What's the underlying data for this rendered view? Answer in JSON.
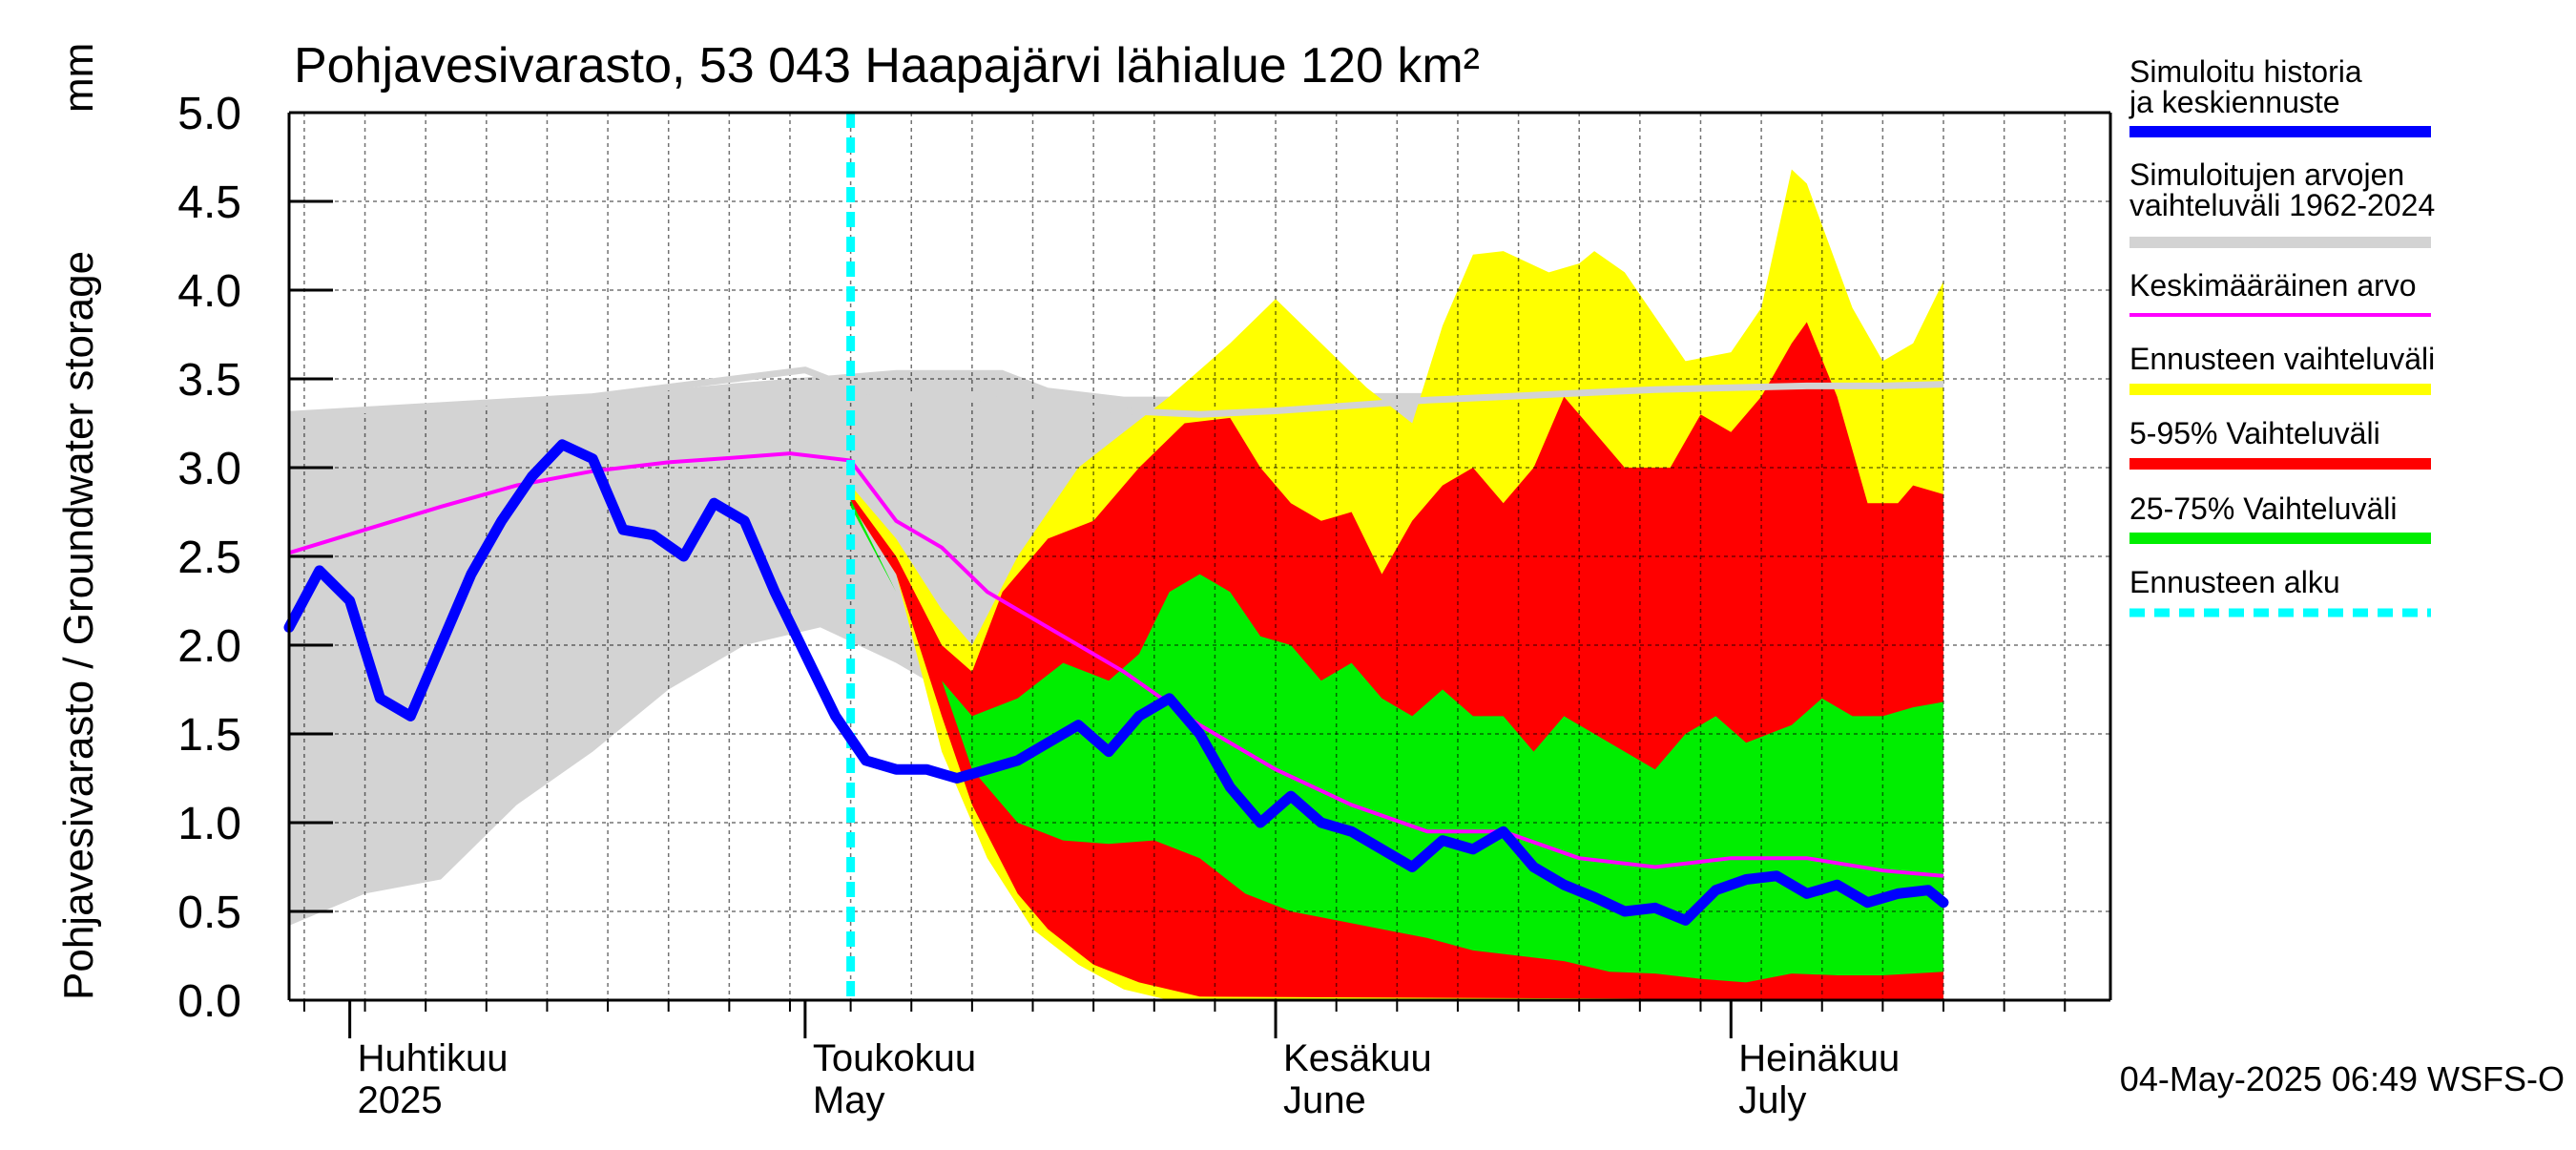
{
  "chart_data": {
    "type": "area",
    "title": "Pohjavesivarasto, 53 043 Haapajärvi lähialue 120 km²",
    "ylabel": "Pohjavesivarasto / Groundwater storage",
    "yunit": "mm",
    "ylim": [
      0.0,
      5.0
    ],
    "yticks": [
      "0.0",
      "0.5",
      "1.0",
      "1.5",
      "2.0",
      "2.5",
      "3.0",
      "3.5",
      "4.0",
      "4.5",
      "5.0"
    ],
    "grid": true,
    "legend_position": "right",
    "x_range": [
      "2025-03-28",
      "2025-07-26"
    ],
    "forecast_start": "2025-05-04",
    "timestamp": "04-May-2025 06:49 WSFS-O",
    "month_labels": [
      {
        "date": "2025-04-01",
        "fi": "Huhtikuu",
        "en": "2025"
      },
      {
        "date": "2025-05-01",
        "fi": "Toukokuu",
        "en": "May"
      },
      {
        "date": "2025-06-01",
        "fi": "Kesäkuu",
        "en": "June"
      },
      {
        "date": "2025-07-01",
        "fi": "Heinäkuu",
        "en": "July"
      }
    ],
    "colors": {
      "history": "#0000ff",
      "hist_range": "#d3d3d3",
      "mean": "#ff00ff",
      "forecast_range": "#ffff00",
      "p5_95": "#ff0000",
      "p25_75": "#00ee00",
      "forecast_start": "#00ffff",
      "mean_min_line": "#d3d3d3"
    },
    "legend": [
      {
        "label": "Simuloitu historia ja keskiennuste",
        "color": "#0000ff",
        "style": "line"
      },
      {
        "label": "Simuloitujen arvojen vaihteluväli 1962-2024",
        "color": "#d3d3d3",
        "style": "line"
      },
      {
        "label": "Keskimääräinen arvo",
        "color": "#ff00ff",
        "style": "thin"
      },
      {
        "label": "Ennusteen vaihteluväli",
        "color": "#ffff00",
        "style": "line"
      },
      {
        "label": "5-95% Vaihteluväli",
        "color": "#ff0000",
        "style": "line"
      },
      {
        "label": "25-75% Vaihteluväli",
        "color": "#00ee00",
        "style": "line"
      },
      {
        "label": "Ennusteen alku",
        "color": "#00ffff",
        "style": "dashed"
      }
    ],
    "series": [
      {
        "name": "Simuloitujen arvojen vaihteluväli 1962-2024",
        "kind": "band",
        "upper": [
          [
            0,
            3.3
          ],
          [
            10,
            3.35
          ],
          [
            20,
            3.4
          ],
          [
            30,
            3.48
          ],
          [
            40,
            3.55
          ],
          [
            47,
            3.55
          ],
          [
            50,
            3.45
          ],
          [
            55,
            3.4
          ],
          [
            62,
            3.4
          ],
          [
            70,
            3.42
          ],
          [
            75,
            3.42
          ],
          [
            80,
            3.44
          ]
        ],
        "lower": [
          [
            0,
            0.42
          ],
          [
            5,
            0.6
          ],
          [
            10,
            0.68
          ],
          [
            15,
            1.1
          ],
          [
            20,
            1.4
          ],
          [
            25,
            1.75
          ],
          [
            30,
            2.0
          ],
          [
            35,
            2.1
          ],
          [
            40,
            1.9
          ],
          [
            44,
            1.7
          ],
          [
            48,
            1.6
          ],
          [
            52,
            1.5
          ],
          [
            56,
            1.3
          ],
          [
            60,
            1.2
          ],
          [
            66,
            1.1
          ],
          [
            70,
            1.0
          ],
          [
            80,
            0.8
          ]
        ]
      },
      {
        "name": "Ennusteen vaihteluväli",
        "kind": "band",
        "upper": [
          [
            37,
            2.9
          ],
          [
            40,
            2.6
          ],
          [
            43,
            2.2
          ],
          [
            45,
            2.0
          ],
          [
            48,
            2.5
          ],
          [
            52,
            3.0
          ],
          [
            58,
            3.4
          ],
          [
            62,
            3.7
          ],
          [
            65,
            3.95
          ],
          [
            68,
            3.7
          ],
          [
            71,
            3.45
          ],
          [
            74,
            3.25
          ],
          [
            76,
            3.8
          ],
          [
            78,
            4.2
          ],
          [
            80,
            4.22
          ],
          [
            83,
            4.1
          ],
          [
            85,
            4.15
          ],
          [
            86,
            4.22
          ],
          [
            88,
            4.1
          ],
          [
            92,
            3.6
          ],
          [
            95,
            3.65
          ],
          [
            97,
            3.9
          ],
          [
            99,
            4.68
          ],
          [
            100,
            4.6
          ],
          [
            103,
            3.9
          ],
          [
            105,
            3.6
          ],
          [
            107,
            3.7
          ],
          [
            109,
            4.05
          ]
        ],
        "lower": [
          [
            37,
            2.8
          ],
          [
            40,
            2.4
          ],
          [
            43,
            1.4
          ],
          [
            46,
            0.8
          ],
          [
            49,
            0.4
          ],
          [
            52,
            0.2
          ],
          [
            55,
            0.06
          ],
          [
            58,
            0.0
          ],
          [
            109,
            0.0
          ]
        ]
      },
      {
        "name": "5-95% Vaihteluväli",
        "kind": "band",
        "upper": [
          [
            37,
            2.85
          ],
          [
            40,
            2.5
          ],
          [
            43,
            2.0
          ],
          [
            45,
            1.85
          ],
          [
            47,
            2.3
          ],
          [
            50,
            2.6
          ],
          [
            53,
            2.7
          ],
          [
            56,
            3.0
          ],
          [
            59,
            3.25
          ],
          [
            62,
            3.28
          ],
          [
            64,
            3.0
          ],
          [
            66,
            2.8
          ],
          [
            68,
            2.7
          ],
          [
            70,
            2.75
          ],
          [
            72,
            2.4
          ],
          [
            74,
            2.7
          ],
          [
            76,
            2.9
          ],
          [
            78,
            3.0
          ],
          [
            80,
            2.8
          ],
          [
            82,
            3.0
          ],
          [
            84,
            3.4
          ],
          [
            86,
            3.2
          ],
          [
            88,
            3.0
          ],
          [
            91,
            3.0
          ],
          [
            93,
            3.3
          ],
          [
            95,
            3.2
          ],
          [
            97,
            3.4
          ],
          [
            99,
            3.7
          ],
          [
            100,
            3.82
          ],
          [
            102,
            3.4
          ],
          [
            104,
            2.8
          ],
          [
            106,
            2.8
          ],
          [
            107,
            2.9
          ],
          [
            109,
            2.85
          ]
        ],
        "lower": [
          [
            37,
            2.8
          ],
          [
            40,
            2.4
          ],
          [
            43,
            1.6
          ],
          [
            45,
            1.1
          ],
          [
            48,
            0.6
          ],
          [
            50,
            0.4
          ],
          [
            53,
            0.2
          ],
          [
            56,
            0.1
          ],
          [
            60,
            0.02
          ],
          [
            109,
            0.0
          ]
        ]
      },
      {
        "name": "25-75% Vaihteluväli",
        "kind": "band",
        "upper": [
          [
            37,
            2.82
          ],
          [
            40,
            2.3
          ],
          [
            43,
            1.8
          ],
          [
            45,
            1.6
          ],
          [
            48,
            1.7
          ],
          [
            51,
            1.9
          ],
          [
            54,
            1.8
          ],
          [
            56,
            1.95
          ],
          [
            58,
            2.3
          ],
          [
            60,
            2.4
          ],
          [
            62,
            2.3
          ],
          [
            64,
            2.05
          ],
          [
            66,
            2.0
          ],
          [
            68,
            1.8
          ],
          [
            70,
            1.9
          ],
          [
            72,
            1.7
          ],
          [
            74,
            1.6
          ],
          [
            76,
            1.75
          ],
          [
            78,
            1.6
          ],
          [
            80,
            1.6
          ],
          [
            82,
            1.4
          ],
          [
            84,
            1.6
          ],
          [
            86,
            1.5
          ],
          [
            88,
            1.4
          ],
          [
            90,
            1.3
          ],
          [
            92,
            1.5
          ],
          [
            94,
            1.6
          ],
          [
            96,
            1.45
          ],
          [
            99,
            1.55
          ],
          [
            101,
            1.7
          ],
          [
            103,
            1.6
          ],
          [
            105,
            1.6
          ],
          [
            107,
            1.65
          ],
          [
            109,
            1.68
          ]
        ],
        "lower": [
          [
            37,
            2.78
          ],
          [
            40,
            2.3
          ],
          [
            43,
            1.8
          ],
          [
            45,
            1.3
          ],
          [
            48,
            1.0
          ],
          [
            51,
            0.9
          ],
          [
            54,
            0.88
          ],
          [
            57,
            0.9
          ],
          [
            60,
            0.8
          ],
          [
            63,
            0.6
          ],
          [
            66,
            0.5
          ],
          [
            69,
            0.45
          ],
          [
            72,
            0.4
          ],
          [
            75,
            0.35
          ],
          [
            78,
            0.28
          ],
          [
            81,
            0.25
          ],
          [
            84,
            0.22
          ],
          [
            87,
            0.16
          ],
          [
            90,
            0.15
          ],
          [
            93,
            0.12
          ],
          [
            96,
            0.1
          ],
          [
            99,
            0.15
          ],
          [
            102,
            0.14
          ],
          [
            105,
            0.14
          ],
          [
            109,
            0.16
          ]
        ]
      },
      {
        "name": "Keskimääräinen arvo (kuvaajan viiva)",
        "kind": "line",
        "points": [
          [
            0,
            2.52
          ],
          [
            5,
            2.65
          ],
          [
            10,
            2.78
          ],
          [
            15,
            2.9
          ],
          [
            20,
            2.98
          ],
          [
            25,
            3.03
          ],
          [
            30,
            3.06
          ],
          [
            33,
            3.08
          ],
          [
            37,
            3.04
          ],
          [
            40,
            2.7
          ],
          [
            43,
            2.55
          ],
          [
            46,
            2.3
          ],
          [
            50,
            2.1
          ],
          [
            55,
            1.85
          ],
          [
            60,
            1.55
          ],
          [
            65,
            1.3
          ],
          [
            70,
            1.1
          ],
          [
            75,
            0.95
          ],
          [
            80,
            0.95
          ],
          [
            85,
            0.8
          ],
          [
            90,
            0.75
          ],
          [
            95,
            0.8
          ],
          [
            100,
            0.8
          ],
          [
            105,
            0.73
          ],
          [
            109,
            0.7
          ]
        ]
      },
      {
        "name": "Minimi (kuvaajan harmaa viiva)",
        "kind": "line",
        "points": [
          [
            0,
            3.3
          ],
          [
            20,
            3.4
          ],
          [
            34,
            3.55
          ],
          [
            37,
            3.45
          ],
          [
            40,
            3.4
          ],
          [
            45,
            3.4
          ],
          [
            50,
            3.35
          ],
          [
            55,
            3.32
          ],
          [
            60,
            3.3
          ],
          [
            65,
            3.32
          ],
          [
            70,
            3.35
          ],
          [
            75,
            3.38
          ],
          [
            80,
            3.4
          ],
          [
            85,
            3.42
          ],
          [
            90,
            3.44
          ],
          [
            95,
            3.45
          ],
          [
            100,
            3.46
          ],
          [
            105,
            3.46
          ],
          [
            109,
            3.47
          ]
        ]
      },
      {
        "name": "Simuloitu historia ja keskiennuste",
        "kind": "line",
        "points": [
          [
            0,
            2.1
          ],
          [
            2,
            2.42
          ],
          [
            4,
            2.25
          ],
          [
            6,
            1.7
          ],
          [
            8,
            1.6
          ],
          [
            10,
            2.0
          ],
          [
            12,
            2.4
          ],
          [
            14,
            2.7
          ],
          [
            16,
            2.95
          ],
          [
            18,
            3.13
          ],
          [
            20,
            3.05
          ],
          [
            22,
            2.65
          ],
          [
            24,
            2.62
          ],
          [
            26,
            2.5
          ],
          [
            28,
            2.8
          ],
          [
            30,
            2.7
          ],
          [
            32,
            2.3
          ],
          [
            34,
            1.95
          ],
          [
            36,
            1.6
          ],
          [
            38,
            1.35
          ],
          [
            40,
            1.3
          ],
          [
            42,
            1.3
          ],
          [
            44,
            1.25
          ],
          [
            46,
            1.3
          ],
          [
            48,
            1.35
          ],
          [
            50,
            1.45
          ],
          [
            52,
            1.55
          ],
          [
            54,
            1.4
          ],
          [
            56,
            1.6
          ],
          [
            58,
            1.7
          ],
          [
            60,
            1.5
          ],
          [
            62,
            1.2
          ],
          [
            64,
            1.0
          ],
          [
            66,
            1.15
          ],
          [
            68,
            1.0
          ],
          [
            70,
            0.95
          ],
          [
            72,
            0.85
          ],
          [
            74,
            0.75
          ],
          [
            76,
            0.9
          ],
          [
            78,
            0.85
          ],
          [
            80,
            0.95
          ],
          [
            82,
            0.75
          ],
          [
            84,
            0.65
          ],
          [
            86,
            0.58
          ],
          [
            88,
            0.5
          ],
          [
            90,
            0.52
          ],
          [
            92,
            0.45
          ],
          [
            94,
            0.62
          ],
          [
            96,
            0.68
          ],
          [
            98,
            0.7
          ],
          [
            100,
            0.6
          ],
          [
            102,
            0.65
          ],
          [
            104,
            0.55
          ],
          [
            106,
            0.6
          ],
          [
            108,
            0.62
          ],
          [
            109,
            0.55
          ]
        ]
      }
    ]
  }
}
